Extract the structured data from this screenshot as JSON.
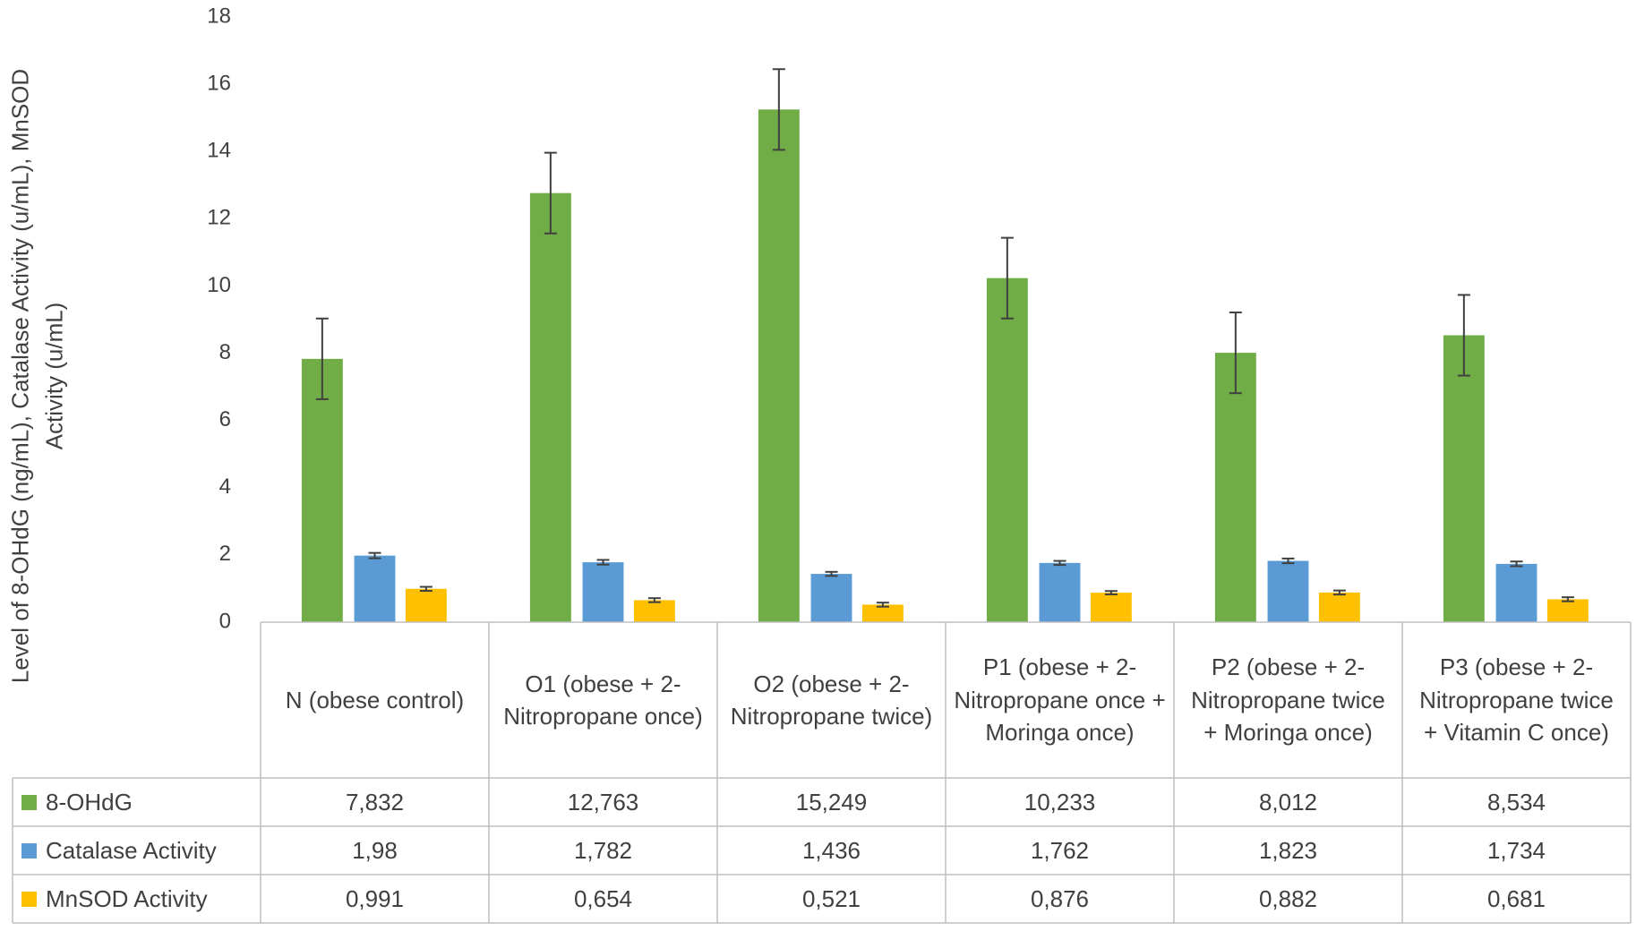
{
  "chart_data": {
    "type": "bar",
    "y_label": "Level of 8-OHdG (ng/mL), Catalase Activity (u/mL), MnSOD Activity (u/mL)",
    "categories": [
      "N (obese control)",
      "O1 (obese + 2-Nitropropane once)",
      "O2 (obese + 2-Nitropropane twice)",
      "P1 (obese + 2-Nitropropane once + Moringa once)",
      "P2 (obese + 2-Nitropropane twice + Moringa once)",
      "P3 (obese + 2-Nitropropane twice + Vitamin C once)"
    ],
    "series": [
      {
        "name": "8-OHdG",
        "color": "#70ad47",
        "values": [
          7.832,
          12.763,
          15.249,
          10.233,
          8.012,
          8.534
        ],
        "value_labels": [
          "7,832",
          "12,763",
          "15,249",
          "10,233",
          "8,012",
          "8,534"
        ],
        "errors": [
          1.2,
          1.2,
          1.2,
          1.2,
          1.2,
          1.2
        ]
      },
      {
        "name": "Catalase Activity",
        "color": "#5b9bd5",
        "values": [
          1.98,
          1.782,
          1.436,
          1.762,
          1.823,
          1.734
        ],
        "value_labels": [
          "1,98",
          "1,782",
          "1,436",
          "1,762",
          "1,823",
          "1,734"
        ],
        "errors": [
          0.08,
          0.07,
          0.06,
          0.06,
          0.07,
          0.07
        ]
      },
      {
        "name": "MnSOD Activity",
        "color": "#ffc000",
        "values": [
          0.991,
          0.654,
          0.521,
          0.876,
          0.882,
          0.681
        ],
        "value_labels": [
          "0,991",
          "0,654",
          "0,521",
          "0,876",
          "0,882",
          "0,681"
        ],
        "errors": [
          0.06,
          0.06,
          0.06,
          0.05,
          0.06,
          0.06
        ]
      }
    ],
    "ylim": [
      0,
      18
    ],
    "yticks": [
      0,
      2,
      4,
      6,
      8,
      10,
      12,
      14,
      16,
      18
    ],
    "grid": false,
    "error_bars": true
  }
}
